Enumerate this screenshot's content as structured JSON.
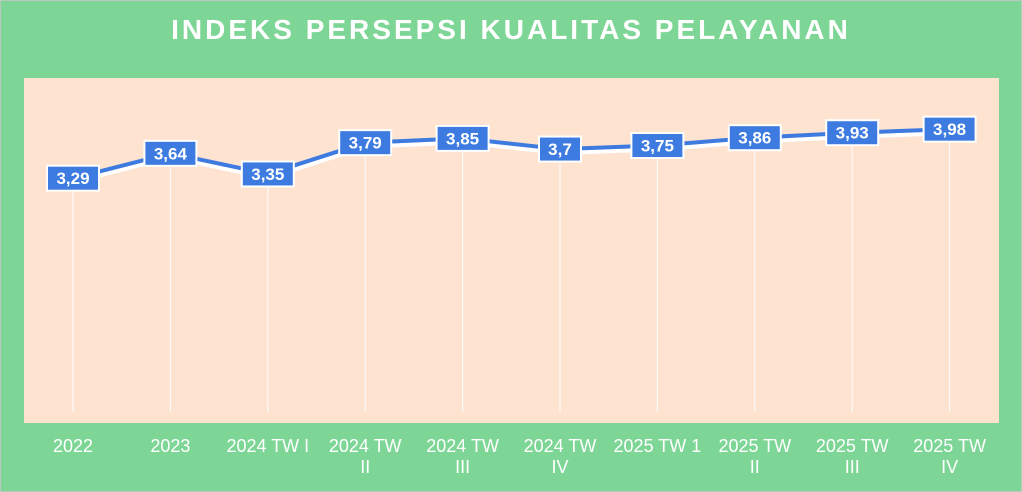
{
  "chart_data": {
    "type": "line",
    "title": "INDEKS PERSEPSI KUALITAS PELAYANAN",
    "categories": [
      [
        "2022"
      ],
      [
        "2023"
      ],
      [
        "2024 TW I"
      ],
      [
        "2024 TW",
        "II"
      ],
      [
        "2024 TW",
        "III"
      ],
      [
        "2024 TW",
        "IV"
      ],
      [
        "2025 TW 1"
      ],
      [
        "2025 TW",
        "II"
      ],
      [
        "2025 TW",
        "III"
      ],
      [
        "2025 TW",
        "IV"
      ]
    ],
    "values": [
      3.29,
      3.64,
      3.35,
      3.79,
      3.85,
      3.7,
      3.75,
      3.86,
      3.93,
      3.98
    ],
    "value_labels": [
      "3,29",
      "3,64",
      "3,35",
      "3,79",
      "3,85",
      "3,7",
      "3,75",
      "3,86",
      "3,93",
      "3,98"
    ],
    "ylim": [
      0,
      4.7
    ],
    "legend": "none",
    "colors": {
      "background": "#7ed696",
      "plot_area": "#fde3d0",
      "line": "#3d7be0",
      "label_box": "#3d7be0",
      "text": "#ffffff"
    }
  }
}
